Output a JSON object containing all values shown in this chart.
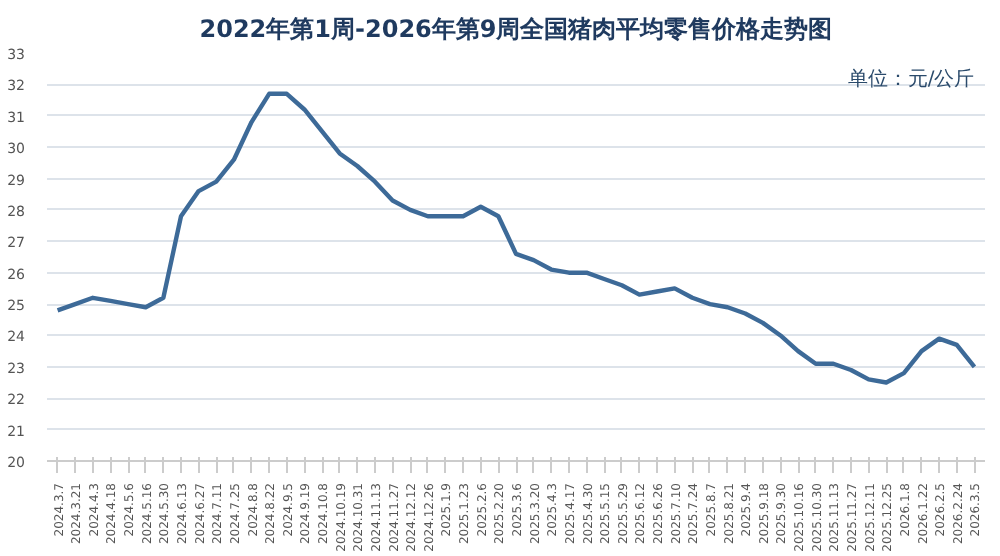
{
  "chart_data": {
    "type": "line",
    "title": "2022年第1周-2026年第9周全国猪肉平均零售价格走势图",
    "annotations": [
      "单位：元/公斤"
    ],
    "categories": [
      "2024.3.7",
      "2024.3.21",
      "2024.4.3",
      "2024.4.18",
      "2024.5.6",
      "2024.5.16",
      "2024.5.30",
      "2024.6.13",
      "2024.6.27",
      "2024.7.11",
      "2024.7.25",
      "2024.8.8",
      "2024.8.22",
      "2024.9.5",
      "2024.9.19",
      "2024.10.8",
      "2024.10.19",
      "2024.10.31",
      "2024.11.13",
      "2024.11.27",
      "2024.12.12",
      "2024.12.26",
      "2025.1.9",
      "2025.1.23",
      "2025.2.6",
      "2025.2.20",
      "2025.3.6",
      "2025.3.20",
      "2025.4.3",
      "2025.4.17",
      "2025.4.30",
      "2025.5.15",
      "2025.5.29",
      "2025.6.12",
      "2025.6.26",
      "2025.7.10",
      "2025.7.24",
      "2025.8.7",
      "2025.8.21",
      "2025.9.4",
      "2025.9.18",
      "2025.9.30",
      "2025.10.16",
      "2025.10.30",
      "2025.11.13",
      "2025.11.27",
      "2025.12.11",
      "2025.12.25",
      "2026.1.8",
      "2026.1.22",
      "2026.2.5",
      "2026.2.24",
      "2026.3.5"
    ],
    "series": [
      {
        "color": "#3d6a98",
        "values": [
          24.8,
          25.0,
          25.2,
          25.1,
          25.0,
          24.9,
          25.2,
          27.8,
          28.6,
          28.9,
          29.6,
          30.8,
          31.7,
          31.7,
          31.2,
          30.5,
          29.8,
          29.4,
          28.9,
          28.3,
          28.0,
          27.8,
          27.8,
          27.8,
          28.1,
          27.8,
          26.6,
          26.4,
          26.1,
          26.0,
          26.0,
          25.8,
          25.6,
          25.3,
          25.4,
          25.5,
          25.2,
          25.0,
          24.9,
          24.7,
          24.4,
          24.0,
          23.5,
          23.1,
          23.1,
          22.9,
          22.6,
          22.5,
          22.8,
          23.5,
          23.9,
          23.7,
          23.0
        ]
      }
    ],
    "ylim": [
      20,
      33
    ],
    "yticks": [
      20,
      21,
      22,
      23,
      24,
      25,
      26,
      27,
      28,
      29,
      30,
      31,
      32,
      33
    ],
    "grid": "y",
    "marker": "none",
    "line_style": "solid"
  }
}
